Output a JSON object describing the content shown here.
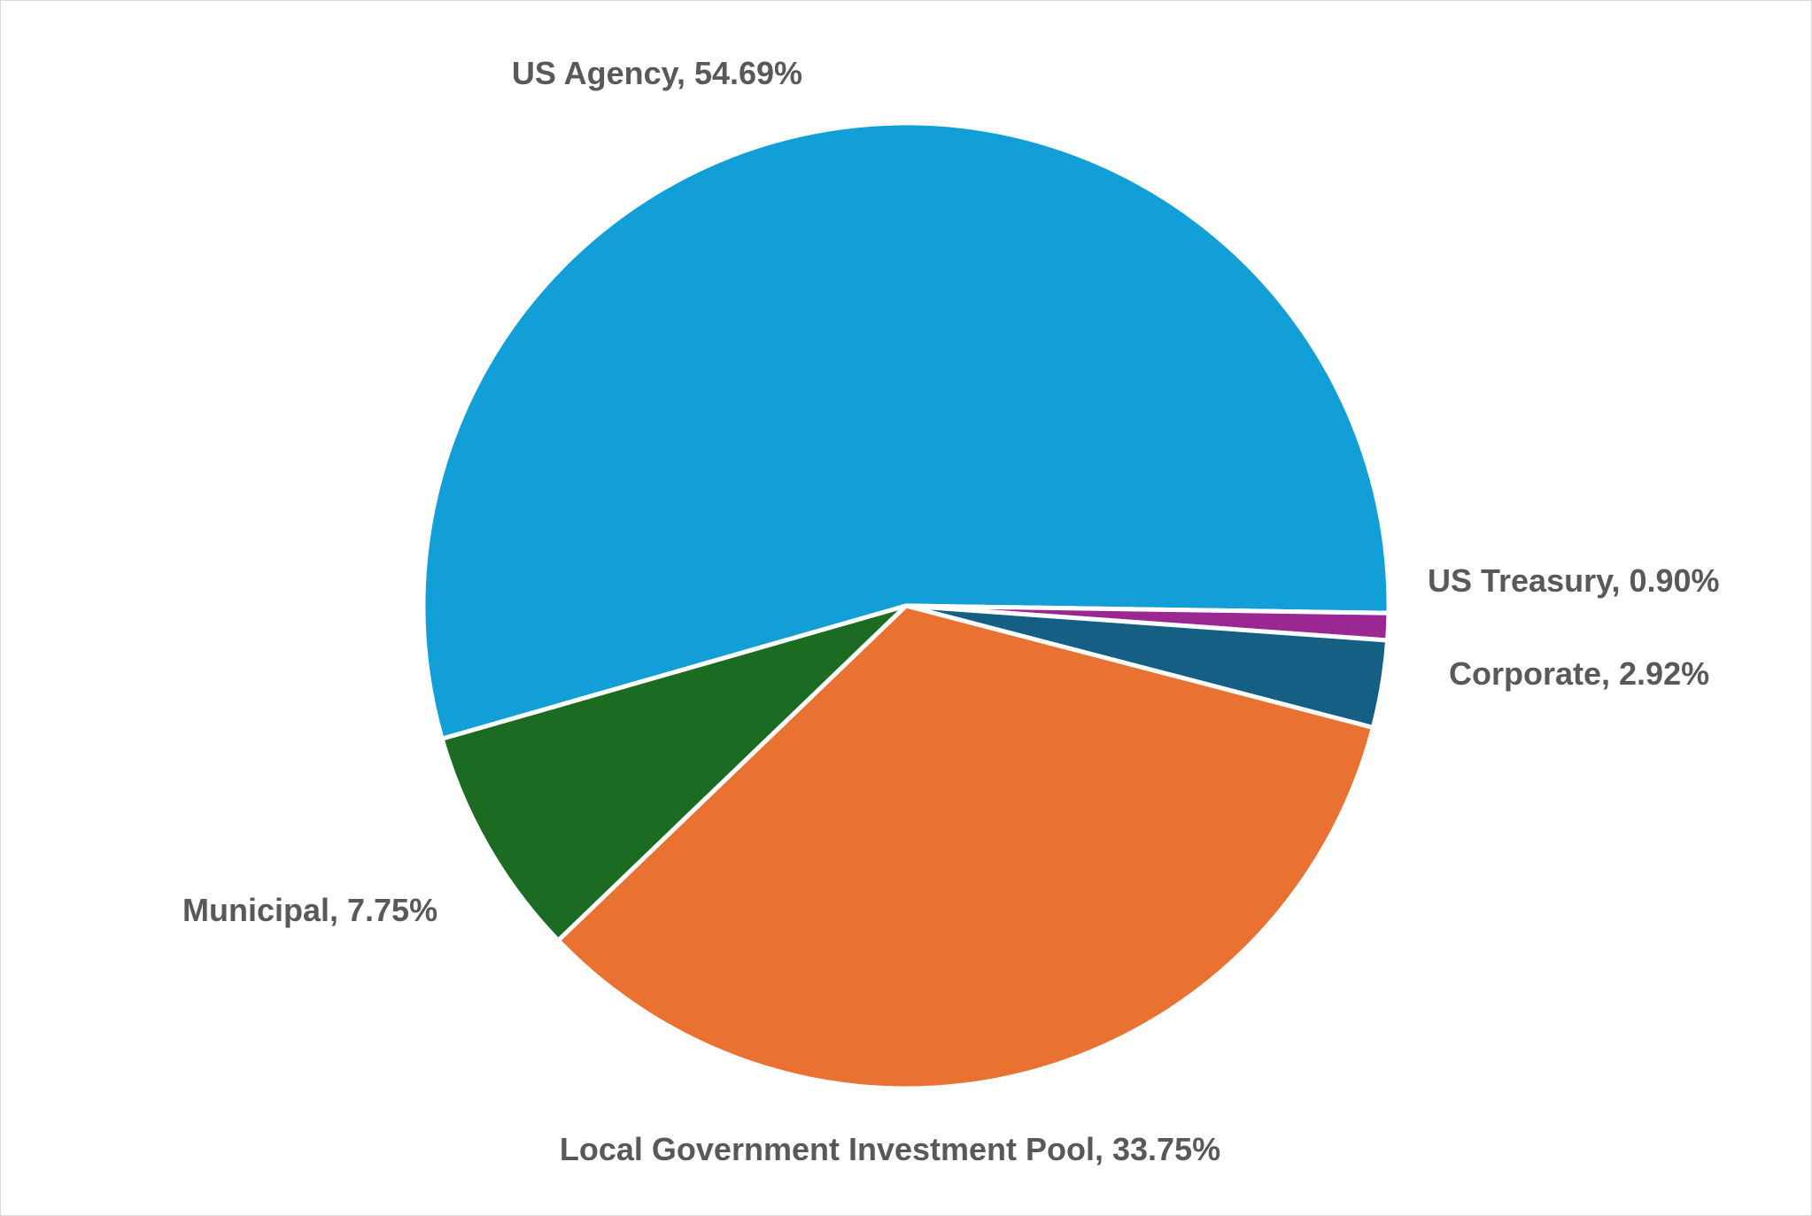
{
  "chart_data": {
    "type": "pie",
    "title": "",
    "legend": "none",
    "slices": [
      {
        "label": "US Agency",
        "value": 54.69,
        "display": "US Agency, 54.69%",
        "color": "#129ED6"
      },
      {
        "label": "US Treasury",
        "value": 0.9,
        "display": "US Treasury, 0.90%",
        "color": "#9B2793"
      },
      {
        "label": "Corporate",
        "value": 2.92,
        "display": "Corporate, 2.92%",
        "color": "#155F84"
      },
      {
        "label": "Local Government Investment Pool",
        "value": 33.75,
        "display": "Local Government Investment Pool, 33.75%",
        "color": "#E97132"
      },
      {
        "label": "Municipal",
        "value": 7.75,
        "display": "Municipal, 7.75%",
        "color": "#1B6B22"
      }
    ],
    "start_angle_deg": -106,
    "direction": "clockwise",
    "label_color": "#595959",
    "slice_separator_color": "#FFFFFF"
  }
}
